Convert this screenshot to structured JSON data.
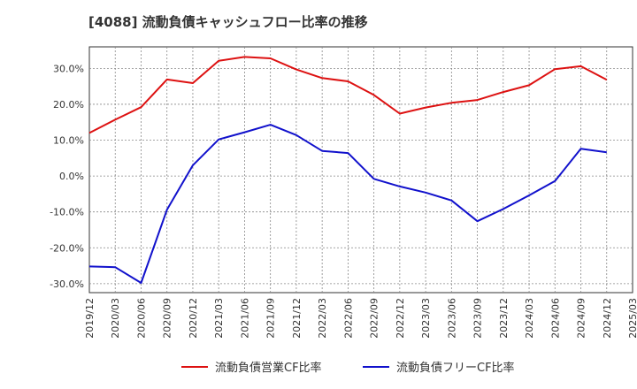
{
  "chart_data": {
    "type": "line",
    "title": "[4088]  流動負債キャッシュフロー比率の推移",
    "x": [
      "2019/12",
      "2020/03",
      "2020/06",
      "2020/09",
      "2020/12",
      "2021/03",
      "2021/06",
      "2021/09",
      "2021/12",
      "2022/03",
      "2022/06",
      "2022/09",
      "2022/12",
      "2023/03",
      "2023/06",
      "2023/09",
      "2023/12",
      "2024/03",
      "2024/06",
      "2024/09",
      "2024/12",
      "2025/03"
    ],
    "series": [
      {
        "name": "流動負債営業CF比率",
        "color": "#dd1111",
        "values": [
          12.0,
          15.7,
          19.2,
          26.9,
          25.9,
          32.1,
          33.2,
          32.8,
          29.7,
          27.3,
          26.4,
          22.6,
          17.4,
          19.1,
          20.4,
          21.2,
          23.4,
          25.3,
          29.8,
          30.6,
          26.8,
          null
        ]
      },
      {
        "name": "流動負債フリーCF比率",
        "color": "#1111cc",
        "values": [
          -25.2,
          -25.4,
          -29.8,
          -9.4,
          3.0,
          10.2,
          12.2,
          14.3,
          11.4,
          7.0,
          6.4,
          -0.8,
          -2.9,
          -4.6,
          -6.8,
          -12.6,
          -9.2,
          -5.4,
          -1.4,
          7.6,
          6.6,
          null
        ]
      }
    ],
    "yticks": [
      "30.0%",
      "20.0%",
      "10.0%",
      "0.0%",
      "-10.0%",
      "-20.0%",
      "-30.0%"
    ],
    "ytick_values": [
      30,
      20,
      10,
      0,
      -10,
      -20,
      -30
    ],
    "ylim": [
      -32.5,
      36
    ],
    "grid": true,
    "legend_placement": "bottom-center"
  }
}
